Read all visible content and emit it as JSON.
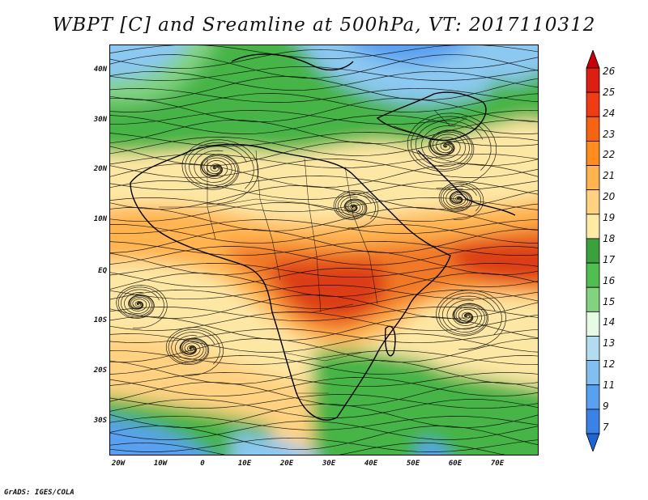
{
  "title": "WBPT [C] and Sreamline at 500hPa, VT: 2017110312",
  "footer": "GrADS: IGES/COLA",
  "latitude_labels": [
    "40N",
    "30N",
    "20N",
    "10N",
    "EQ",
    "10S",
    "20S",
    "30S"
  ],
  "longitude_labels": [
    "20W",
    "10W",
    "0",
    "10E",
    "20E",
    "30E",
    "40E",
    "50E",
    "60E",
    "70E"
  ],
  "colorbar": {
    "labels": [
      "26",
      "25",
      "24",
      "23",
      "22",
      "21",
      "20",
      "19",
      "18",
      "17",
      "16",
      "15",
      "14",
      "13",
      "12",
      "11",
      "9",
      "7"
    ],
    "colors": [
      "#c8000a",
      "#dc1e14",
      "#f03c14",
      "#f56414",
      "#ff8c1e",
      "#ffb450",
      "#ffd282",
      "#ffeba5",
      "#3ca03c",
      "#50be50",
      "#82d282",
      "#e6fae6",
      "#b4dcf0",
      "#82bef0",
      "#5aa0f0",
      "#3c82e6",
      "#1e64d2"
    ]
  },
  "colors": {
    "tropical_warm": "#f07828",
    "subtropical": "#fde7a4",
    "midlatitude": "#46b446",
    "cold": "#5a9ee6",
    "streamline": "#000000"
  }
}
